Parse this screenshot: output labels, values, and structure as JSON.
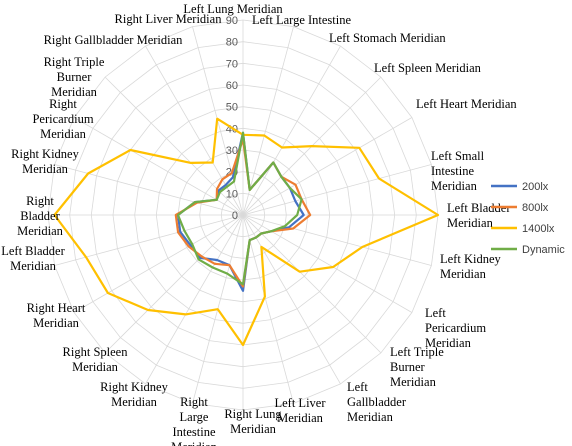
{
  "chart_data": {
    "type": "radar",
    "categories": [
      "Left Lung Meridian",
      "Left Large Intestine",
      "Left Stomach Meridian",
      "Left Spleen Meridian",
      "Left Heart Meridian",
      "Left Small Intestine Meridian",
      "Left Bladder Meridian",
      "Left Kidney Meridian",
      "Left Pericardium Meridian",
      "Left Triple Burner Meridian",
      "Left Gallbladder Meridian",
      "Left Liver Meridian",
      "Right Lung Meridian",
      "Right Large Intestine Meridian",
      "Right Kidney Meridian",
      "Right Spleen Meridian",
      "Right Heart Meridian",
      "Left Bladder Meridian",
      "Right Bladder Meridian",
      "Right Kidney Meridian",
      "Right Pericardium Meridian",
      "Right Triple Burner Meridian",
      "Right Gallbladder Meridian",
      "Right Liver Meridian"
    ],
    "ticks": [
      "0",
      "10",
      "20",
      "30",
      "40",
      "50",
      "60",
      "70",
      "80",
      "90"
    ],
    "ylim": [
      0,
      90
    ],
    "grid": true,
    "legend_position": "right",
    "series": [
      {
        "name": "200lx",
        "color": "#4472C4",
        "values": [
          38,
          12,
          28,
          25,
          25,
          25,
          28,
          22,
          15,
          12,
          12,
          12,
          35,
          24,
          24,
          28,
          28,
          30,
          30,
          23,
          14,
          16,
          16,
          18
        ]
      },
      {
        "name": "800lx",
        "color": "#ED7D31",
        "values": [
          35,
          12,
          28,
          25,
          28,
          28,
          31,
          24,
          15,
          12,
          12,
          12,
          33,
          24,
          26,
          27,
          29,
          31,
          31,
          22,
          14,
          17,
          19,
          20
        ]
      },
      {
        "name": "1400lx",
        "color": "#FFC000",
        "values": [
          37,
          38,
          36,
          45,
          62,
          65,
          90,
          57,
          48,
          37,
          17,
          39,
          60,
          45,
          53,
          62,
          72,
          75,
          87,
          74,
          60,
          34,
          28,
          46
        ]
      },
      {
        "name": "Dynamic",
        "color": "#70AD47",
        "values": [
          38,
          12,
          28,
          25,
          25,
          28,
          25,
          20,
          15,
          12,
          12,
          12,
          32,
          28,
          28,
          29,
          27,
          28,
          30,
          23,
          14,
          15,
          15,
          16
        ]
      }
    ]
  }
}
